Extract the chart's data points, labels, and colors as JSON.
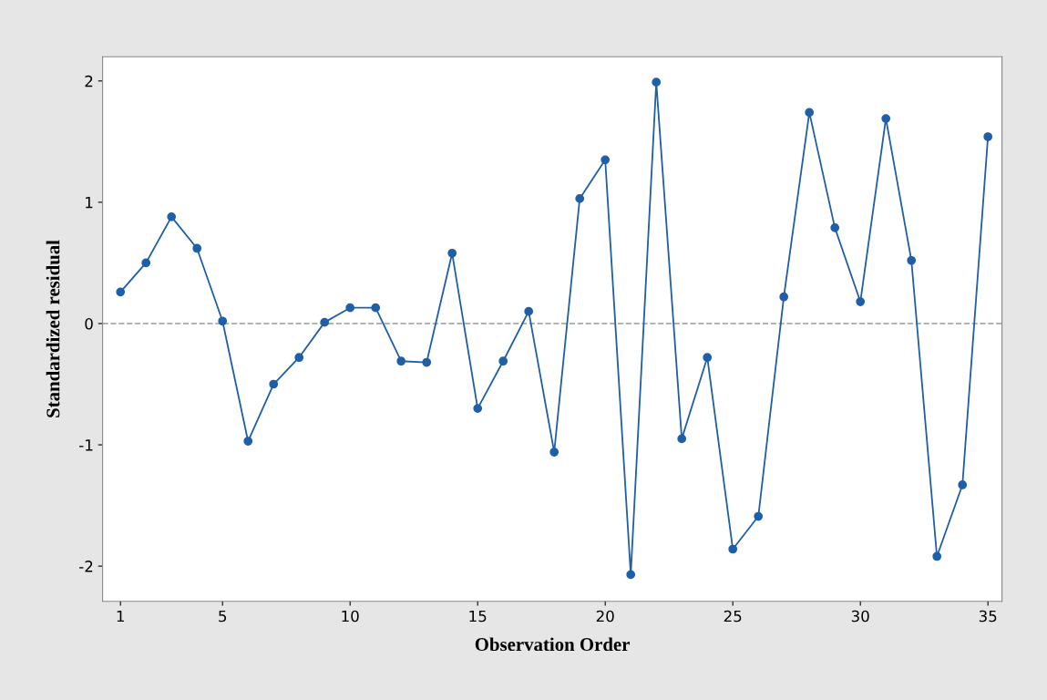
{
  "chart_data": {
    "type": "line",
    "xlabel": "Observation Order",
    "ylabel": "Standardized residual",
    "x": [
      1,
      2,
      3,
      4,
      5,
      6,
      7,
      8,
      9,
      10,
      11,
      12,
      13,
      14,
      15,
      16,
      17,
      18,
      19,
      20,
      21,
      22,
      23,
      24,
      25,
      26,
      27,
      28,
      29,
      30,
      31,
      32,
      33,
      34,
      35
    ],
    "series": [
      {
        "color": "#1f5fa8",
        "values": [
          0.26,
          0.5,
          0.88,
          0.62,
          0.02,
          -0.97,
          -0.5,
          -0.28,
          0.01,
          0.13,
          0.13,
          -0.31,
          -0.32,
          0.58,
          -0.7,
          -0.31,
          0.1,
          -1.06,
          1.03,
          1.35,
          -2.07,
          1.99,
          -0.95,
          -0.28,
          -1.86,
          -1.59,
          0.22,
          1.74,
          0.79,
          0.18,
          1.69,
          0.52,
          -1.92,
          -1.33,
          1.54
        ]
      }
    ],
    "xlim": [
      0.3,
      35.55
    ],
    "xticks": [
      1,
      5,
      10,
      15,
      20,
      25,
      30,
      35
    ],
    "ylim": [
      -2.29,
      2.2
    ],
    "yticks": [
      -2,
      -1,
      0,
      1,
      2
    ],
    "ref_lines": [
      {
        "axis": "y",
        "value": 0,
        "color": "#9a9a9a",
        "line_style": "dashed"
      }
    ],
    "marker": "circle",
    "line_style": "solid",
    "grid": false,
    "legend": false
  }
}
